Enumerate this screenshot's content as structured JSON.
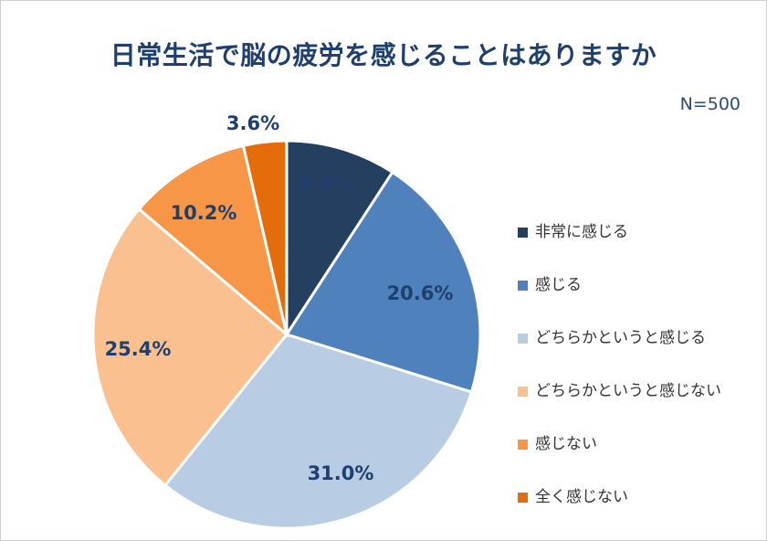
{
  "sample_size": "N=500",
  "chart_data": {
    "type": "pie",
    "title": "日常生活で脳の疲労を感じることはありますか",
    "legend_position": "right",
    "categories": [
      "非常に感じる",
      "感じる",
      "どちらかというと感じる",
      "どちらかというと感じない",
      "感じない",
      "全く感じない"
    ],
    "values": [
      9.2,
      20.6,
      31.0,
      25.4,
      10.2,
      3.6
    ],
    "data_labels": [
      "9.2%",
      "20.6%",
      "31.0%",
      "25.4%",
      "10.2%",
      "3.6%"
    ],
    "colors": [
      "#243f60",
      "#4f81bd",
      "#b8cce4",
      "#fac090",
      "#f79646",
      "#e46c0a"
    ]
  }
}
